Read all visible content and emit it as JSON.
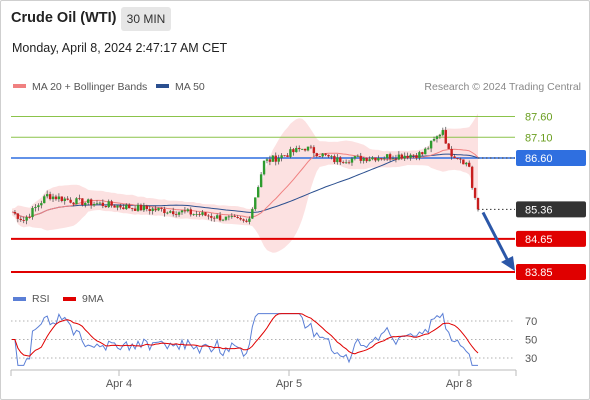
{
  "header": {
    "instrument": "Crude Oil (WTI)",
    "timeframe": "30 MIN",
    "timestamp": "Monday, April 8, 2024 2:47:17 AM CET"
  },
  "legend": {
    "ma20": "MA 20 + Bollinger Bands",
    "ma50": "MA 50",
    "ma20_color": "#f08080",
    "ma50_color": "#2b4f8f"
  },
  "credit": "Research © 2024 Trading Central",
  "chart_data": [
    {
      "type": "candlestick",
      "x_ticks": [
        "Apr 4",
        "Apr 5",
        "Apr 8"
      ],
      "ylim": [
        83.6,
        87.9
      ],
      "levels": [
        {
          "value": 87.6,
          "label": "87.60",
          "kind": "resistance",
          "color": "#8bc34a"
        },
        {
          "value": 87.1,
          "label": "87.10",
          "kind": "resistance",
          "color": "#8bc34a"
        },
        {
          "value": 86.6,
          "label": "86.60",
          "kind": "pivot",
          "color": "#2f6fe0"
        },
        {
          "value": 85.36,
          "label": "85.36",
          "kind": "last",
          "color": "#333333"
        },
        {
          "value": 84.65,
          "label": "84.65",
          "kind": "support",
          "color": "#e00000"
        },
        {
          "value": 83.85,
          "label": "83.85",
          "kind": "support",
          "color": "#e00000"
        }
      ],
      "forecast_target": 83.85
    },
    {
      "type": "line",
      "legend": [
        "RSI",
        "9MA"
      ],
      "legend_colors": [
        "#5b7fd6",
        "#e00000"
      ],
      "y_ticks": [
        70,
        50,
        30
      ],
      "ylim": [
        20,
        80
      ]
    }
  ]
}
